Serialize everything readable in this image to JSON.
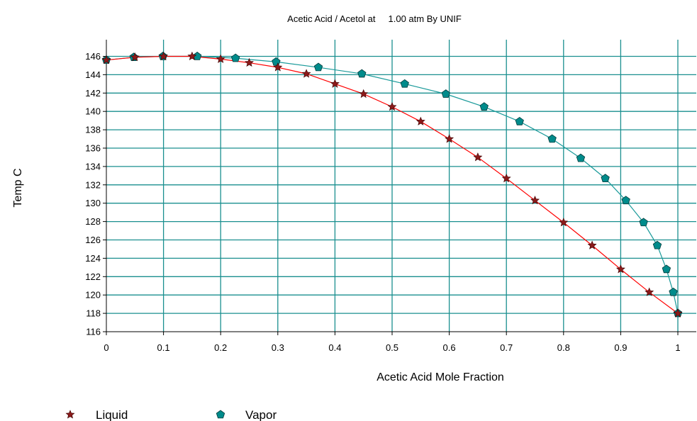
{
  "chart_data": {
    "type": "scatter",
    "title": "Acetic Acid / Acetol at     1.00 atm By UNIF",
    "xlabel": "Acetic Acid Mole Fraction",
    "ylabel": "Temp C",
    "xlim": [
      0,
      1
    ],
    "ylim": [
      116,
      147
    ],
    "x_ticks": [
      "0",
      "0.1",
      "0.2",
      "0.3",
      "0.4",
      "0.5",
      "0.6",
      "0.7",
      "0.8",
      "0.9",
      "1"
    ],
    "y_ticks": [
      "116",
      "118",
      "120",
      "122",
      "124",
      "126",
      "128",
      "130",
      "132",
      "134",
      "136",
      "138",
      "140",
      "142",
      "144",
      "146"
    ],
    "grid": true,
    "legend_position": "bottom-left",
    "series": [
      {
        "name": "Liquid",
        "color": "#ff0000",
        "marker": "star",
        "marker_color": "#8b1a1a",
        "points": [
          [
            0,
            145.6
          ],
          [
            0.05,
            145.9
          ],
          [
            0.1,
            146.0
          ],
          [
            0.15,
            146.0
          ],
          [
            0.2,
            145.7
          ],
          [
            0.25,
            145.3
          ],
          [
            0.3,
            144.8
          ],
          [
            0.35,
            144.1
          ],
          [
            0.4,
            143.0
          ],
          [
            0.45,
            141.9
          ],
          [
            0.5,
            140.5
          ],
          [
            0.55,
            138.9
          ],
          [
            0.6,
            137.0
          ],
          [
            0.65,
            135.0
          ],
          [
            0.7,
            132.7
          ],
          [
            0.75,
            130.3
          ],
          [
            0.8,
            127.9
          ],
          [
            0.85,
            125.4
          ],
          [
            0.9,
            122.8
          ],
          [
            0.95,
            120.3
          ],
          [
            1.0,
            118.0
          ]
        ]
      },
      {
        "name": "Vapor",
        "color": "#1a9a9a",
        "marker": "pentagon",
        "marker_color": "#008b8b",
        "points": [
          [
            0,
            145.6
          ],
          [
            0.048,
            145.9
          ],
          [
            0.099,
            146.0
          ],
          [
            0.159,
            146.0
          ],
          [
            0.226,
            145.8
          ],
          [
            0.297,
            145.4
          ],
          [
            0.371,
            144.8
          ],
          [
            0.447,
            144.1
          ],
          [
            0.522,
            143.0
          ],
          [
            0.594,
            141.9
          ],
          [
            0.661,
            140.5
          ],
          [
            0.723,
            138.9
          ],
          [
            0.78,
            137.0
          ],
          [
            0.83,
            134.9
          ],
          [
            0.873,
            132.7
          ],
          [
            0.909,
            130.3
          ],
          [
            0.94,
            127.9
          ],
          [
            0.964,
            125.4
          ],
          [
            0.98,
            122.8
          ],
          [
            0.992,
            120.3
          ],
          [
            1.0,
            118.0
          ]
        ]
      }
    ]
  }
}
